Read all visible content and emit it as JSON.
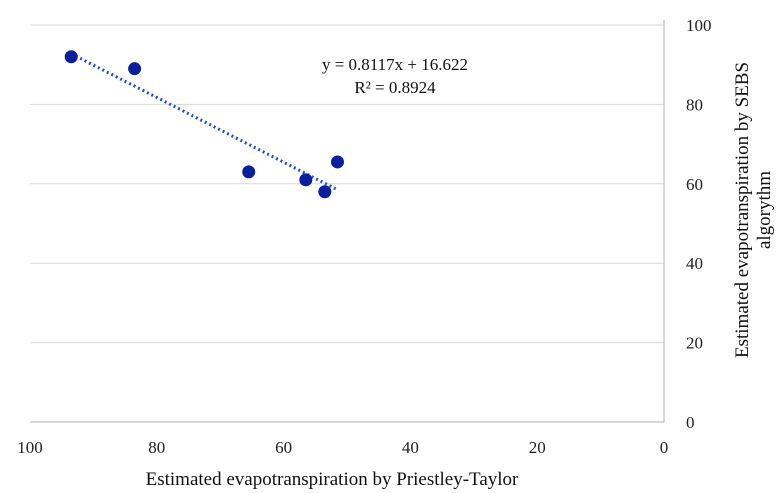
{
  "chart_data": {
    "type": "scatter",
    "title": "",
    "xlabel": "Estimated evapotranspiration by Priestley-Taylor",
    "ylabel_lines": [
      "Estimated evapotranspiration by SEBS",
      "algorythm"
    ],
    "xlim": [
      100,
      0
    ],
    "ylim": [
      0,
      100
    ],
    "x_ticks": [
      100,
      80,
      60,
      40,
      20,
      0
    ],
    "y_ticks": [
      0,
      20,
      40,
      60,
      80,
      100
    ],
    "x_reversed": true,
    "y_axis_position": "right",
    "grid": "horizontal",
    "legend": "none",
    "series": [
      {
        "x": [
          93.5,
          83.5,
          65.5,
          56.5,
          53.5,
          51.5
        ],
        "y": [
          92,
          89,
          63,
          61,
          58,
          65.5
        ],
        "color": "#0a1f9c"
      }
    ],
    "trendline": {
      "style": "dotted linear",
      "color": "#1f4fd1",
      "x_range": [
        93.5,
        51.5
      ],
      "equation": "y = 0.8117x + 16.622",
      "r_squared": "R² = 0.8924"
    }
  }
}
